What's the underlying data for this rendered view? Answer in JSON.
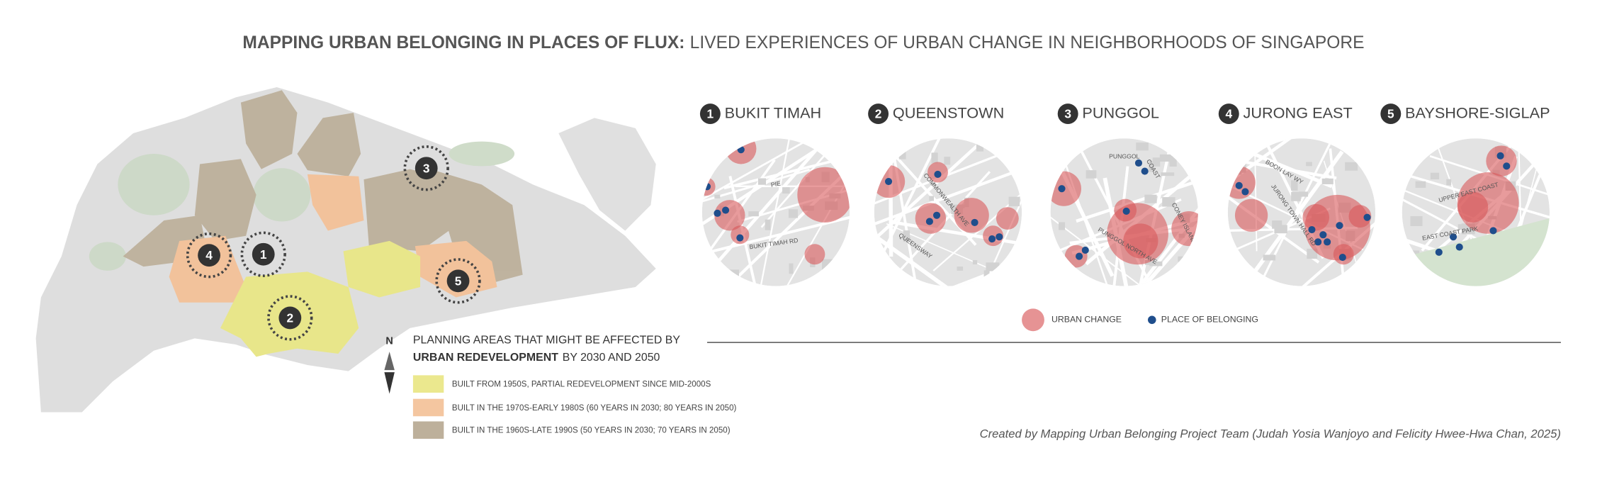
{
  "title": {
    "bold": "MAPPING URBAN BELONGING IN PLACES OF FLUX:",
    "rest": "LIVED EXPERIENCES OF URBAN CHANGE IN NEIGHBORHOODS OF SINGAPORE"
  },
  "neighborhoods": [
    {
      "number": "1",
      "name": "BUKIT TIMAH",
      "labels": [
        "PIE",
        "BUKIT TIMAH RD"
      ]
    },
    {
      "number": "2",
      "name": "QUEENSTOWN",
      "labels": [
        "COMMONWEALTH AVE",
        "QUEENSWAY"
      ]
    },
    {
      "number": "3",
      "name": "PUNGGOL",
      "labels": [
        "PUNGGOL",
        "COAST",
        "PUNGGOL NORTH AVE",
        "CONEY ISLAND"
      ]
    },
    {
      "number": "4",
      "name": "JURONG EAST",
      "labels": [
        "BOON LAY WY",
        "JURONG TOWN HALL RD"
      ]
    },
    {
      "number": "5",
      "name": "BAYSHORE-SIGLAP",
      "labels": [
        "UPPER EAST COAST",
        "EAST COAST PARK"
      ]
    }
  ],
  "legend": {
    "urban_change": "URBAN CHANGE",
    "place_of_belonging": "PLACE OF BELONGING"
  },
  "planning": {
    "heading": "PLANNING AREAS THAT MIGHT BE AFFECTED BY",
    "heading_bold": "URBAN REDEVELOPMENT",
    "heading_rest": "BY 2030 AND 2050",
    "items": [
      "BUILT FROM 1950S, PARTIAL REDEVELOPMENT SINCE MID-2000S",
      "BUILT IN THE 1970S-EARLY 1980S (60 YEARS IN 2030; 80 YEARS IN 2050)",
      "BUILT IN THE 1960S-LATE 1990S (50 YEARS IN 2030; 70 YEARS IN 2050)"
    ]
  },
  "north": "N",
  "credit": "Created by Mapping Urban Belonging Project Team (Judah Yosia Wanjoyo and Felicity Hwee-Hwa Chan, 2025)"
}
